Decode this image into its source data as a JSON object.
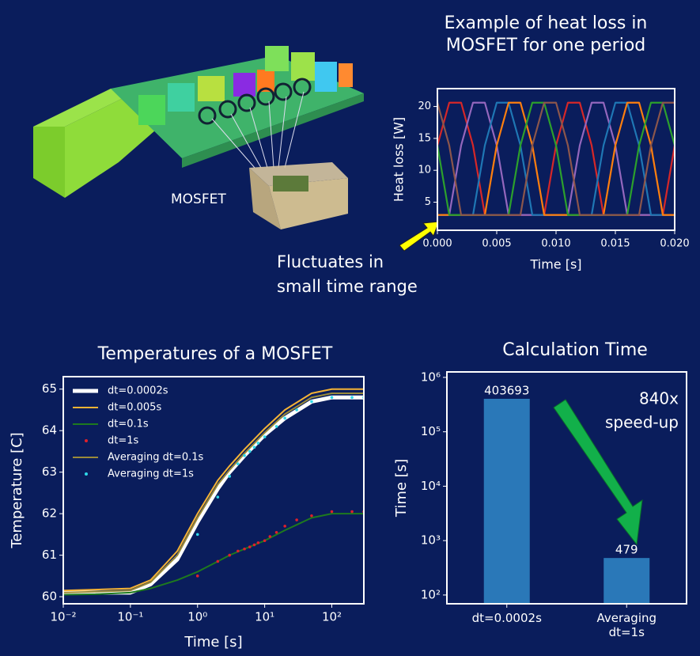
{
  "illustration": {
    "label": "MOSFET"
  },
  "chart_data": [
    {
      "type": "line",
      "title": [
        "Example of heat loss in",
        "MOSFET for one period"
      ],
      "xlabel": "Time [s]",
      "ylabel": "Heat loss [W]",
      "annotation": [
        "Fluctuates in",
        "small time range"
      ],
      "x": [
        0,
        0.001,
        0.002,
        0.003,
        0.004,
        0.005,
        0.006,
        0.007,
        0.008,
        0.009,
        0.01,
        0.011,
        0.012,
        0.013,
        0.014,
        0.015,
        0.016,
        0.017,
        0.018,
        0.019,
        0.02
      ],
      "xlim": [
        0,
        0.02
      ],
      "xticks": [
        {
          "value": 0,
          "label": "0.000"
        },
        {
          "value": 0.005,
          "label": "0.005"
        },
        {
          "value": 0.01,
          "label": "0.010"
        },
        {
          "value": 0.015,
          "label": "0.015"
        },
        {
          "value": 0.02,
          "label": "0.020"
        }
      ],
      "ylim": [
        0.6,
        22.8
      ],
      "yticks": [
        5,
        10,
        15,
        20
      ],
      "series": [
        {
          "color": "#d62728",
          "values": [
            13.9,
            20.6,
            20.6,
            13.9,
            3,
            3,
            3,
            3,
            3,
            3,
            13.9,
            20.6,
            20.6,
            13.9,
            3,
            3,
            3,
            3,
            3,
            3,
            13.9
          ]
        },
        {
          "color": "#9467bd",
          "values": [
            3,
            3,
            13.9,
            20.6,
            20.6,
            13.9,
            3,
            3,
            3,
            3,
            3,
            3,
            13.9,
            20.6,
            20.6,
            13.9,
            3,
            3,
            3,
            3,
            3
          ]
        },
        {
          "color": "#1f77b4",
          "values": [
            3,
            3,
            3,
            3,
            13.9,
            20.6,
            20.6,
            13.9,
            3,
            3,
            3,
            3,
            3,
            3,
            13.9,
            20.6,
            20.6,
            13.9,
            3,
            3,
            3
          ]
        },
        {
          "color": "#ff7f0e",
          "values": [
            3,
            3,
            3,
            3,
            3,
            13.9,
            20.6,
            20.6,
            13.9,
            3,
            3,
            3,
            3,
            3,
            3,
            13.9,
            20.6,
            20.6,
            13.9,
            3,
            3
          ]
        },
        {
          "color": "#2ca02c",
          "values": [
            13.9,
            3,
            3,
            3,
            3,
            3,
            3,
            13.9,
            20.6,
            20.6,
            13.9,
            3,
            3,
            3,
            3,
            3,
            3,
            13.9,
            20.6,
            20.6,
            13.9
          ]
        },
        {
          "color": "#8c564b",
          "values": [
            20.6,
            13.9,
            3,
            3,
            3,
            3,
            3,
            3,
            13.9,
            20.6,
            20.6,
            13.9,
            3,
            3,
            3,
            3,
            3,
            3,
            13.9,
            20.6,
            20.6
          ]
        }
      ]
    },
    {
      "type": "line",
      "title": "Temperatures of a MOSFET",
      "xlabel": "Time [s]",
      "ylabel": "Temperature [C]",
      "xscale": "log",
      "legend": "upper-left",
      "x": [
        0.01,
        0.03,
        0.1,
        0.2,
        0.5,
        1,
        2,
        3,
        5,
        10,
        20,
        50,
        100,
        300
      ],
      "xlim": [
        0.01,
        300
      ],
      "xticks": [
        {
          "value": 0.01,
          "label": "10⁻²"
        },
        {
          "value": 0.1,
          "label": "10⁻¹"
        },
        {
          "value": 1,
          "label": "10⁰"
        },
        {
          "value": 10,
          "label": "10¹"
        },
        {
          "value": 100,
          "label": "10²"
        }
      ],
      "ylim": [
        59.83,
        65.3
      ],
      "yticks": [
        60,
        61,
        62,
        63,
        64,
        65
      ],
      "series": [
        {
          "name": "dt=0.0002s",
          "color": "#ffffff",
          "linewidth": 5,
          "values": [
            60.1,
            60.1,
            60.1,
            60.3,
            60.9,
            61.8,
            62.6,
            63.0,
            63.4,
            63.9,
            64.3,
            64.7,
            64.8,
            64.8
          ]
        },
        {
          "name": "dt=0.005s",
          "color": "#f5b335",
          "linewidth": 2,
          "values": [
            60.15,
            60.17,
            60.2,
            60.4,
            61.1,
            62.0,
            62.8,
            63.15,
            63.55,
            64.05,
            64.5,
            64.9,
            65.0,
            65.0
          ]
        },
        {
          "name": "dt=0.1s",
          "color": "#1e7a1e",
          "linewidth": 2,
          "values": [
            60.05,
            60.06,
            60.1,
            60.2,
            60.4,
            60.6,
            60.85,
            61.0,
            61.15,
            61.35,
            61.6,
            61.9,
            62.0,
            62.0
          ]
        },
        {
          "name": "dt=1s",
          "color": "#e0202a",
          "kind": "points",
          "x": [
            1,
            2,
            3,
            4,
            5,
            6,
            7,
            8,
            10,
            12,
            15,
            20,
            30,
            50,
            100,
            200,
            300
          ],
          "values": [
            60.5,
            60.85,
            61.0,
            61.1,
            61.15,
            61.2,
            61.25,
            61.3,
            61.35,
            61.45,
            61.55,
            61.7,
            61.85,
            61.95,
            62.05,
            62.05,
            62.05
          ]
        },
        {
          "name": "Averaging dt=0.1s",
          "color": "#9a8a3a",
          "linewidth": 2,
          "values": [
            60.1,
            60.12,
            60.15,
            60.35,
            61.0,
            61.9,
            62.7,
            63.05,
            63.45,
            63.95,
            64.4,
            64.8,
            64.9,
            64.9
          ]
        },
        {
          "name": "Averaging dt=1s",
          "color": "#2fd8e8",
          "kind": "points",
          "x": [
            1,
            2,
            3,
            4,
            5,
            6,
            7,
            8,
            10,
            15,
            20,
            30,
            50,
            100,
            200,
            300
          ],
          "values": [
            61.5,
            62.4,
            62.9,
            63.2,
            63.4,
            63.5,
            63.6,
            63.7,
            63.85,
            64.1,
            64.3,
            64.5,
            64.7,
            64.8,
            64.8,
            64.8
          ]
        }
      ]
    },
    {
      "type": "bar",
      "title": "Calculation Time",
      "ylabel": "Time [s]",
      "yscale": "log",
      "annotation": [
        "840x",
        "speed-up"
      ],
      "categories": [
        "dt=0.0002s",
        "Averaging dt=1s"
      ],
      "values": [
        403693,
        479
      ],
      "color": "#2a78b8",
      "ylim": [
        69,
        1260000
      ],
      "yticks": [
        {
          "value": 100,
          "label": "10²"
        },
        {
          "value": 1000,
          "label": "10³"
        },
        {
          "value": 10000,
          "label": "10⁴"
        },
        {
          "value": 100000,
          "label": "10⁵"
        },
        {
          "value": 1000000,
          "label": "10⁶"
        }
      ]
    }
  ]
}
